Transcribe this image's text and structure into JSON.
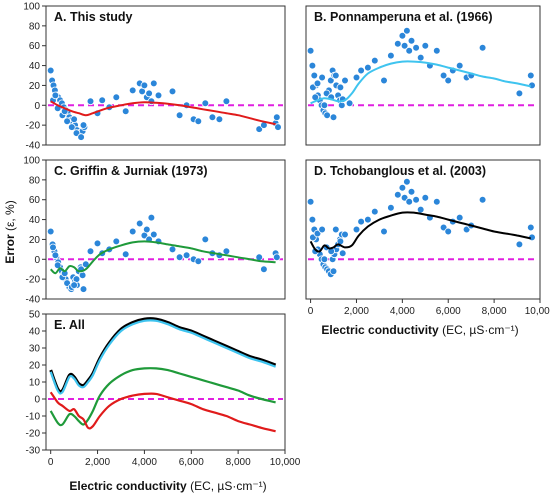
{
  "figure": {
    "y_label_bold": "Error",
    "y_label_rest": " (ε, %)",
    "x_label_bold": "Electric conductivity",
    "x_label_rest": " (EC, µS·cm⁻¹)"
  },
  "colors": {
    "points": "#2b86d9",
    "zero_line": "#e020e0",
    "this_study": "#e01b1b",
    "ponnamperuna": "#3fc4ef",
    "griffin": "#1f9a3a",
    "tchobanglous": "#000000"
  },
  "chart_data": [
    {
      "id": "A",
      "type": "scatter",
      "title": "A. This study",
      "ylim": [
        -40,
        100
      ],
      "yticks": [
        -40,
        -20,
        0,
        20,
        40,
        60,
        80,
        100
      ],
      "xlim": [
        -200,
        10000
      ],
      "xticks": [],
      "grid": false,
      "reference_line_y": 0,
      "fit": {
        "color_key": "this_study",
        "x": [
          0,
          300,
          600,
          900,
          1200,
          1500,
          1800,
          2400,
          3000,
          3500,
          4000,
          4500,
          5000,
          5500,
          6000,
          6500,
          7000,
          7500,
          8000,
          8500,
          9000,
          9600
        ],
        "y": [
          4,
          0,
          -3,
          -6,
          -8,
          -10,
          -8,
          -3,
          0,
          2,
          3,
          2.5,
          1.5,
          0,
          -2,
          -4,
          -6,
          -8,
          -10,
          -13,
          -16,
          -19
        ]
      },
      "points": {
        "x": [
          0,
          60,
          120,
          180,
          250,
          320,
          400,
          480,
          560,
          640,
          720,
          800,
          880,
          960,
          1040,
          1120,
          1200,
          1280,
          1360,
          1440,
          100,
          300,
          500,
          700,
          900,
          1100,
          1300,
          200,
          600,
          1000,
          1400,
          1700,
          2000,
          2200,
          2500,
          2800,
          3200,
          3500,
          3800,
          3900,
          4000,
          4100,
          4200,
          4300,
          4400,
          4600,
          5200,
          5500,
          5800,
          6100,
          6300,
          6600,
          6900,
          7200,
          7500,
          8900,
          9100,
          9600,
          9650,
          9700
        ],
        "y": [
          35,
          25,
          20,
          15,
          10,
          8,
          5,
          2,
          -2,
          -5,
          -8,
          -12,
          -15,
          -18,
          -20,
          -25,
          -28,
          -30,
          -26,
          -22,
          5,
          -3,
          -10,
          -16,
          -22,
          -28,
          -32,
          10,
          -6,
          -14,
          -20,
          4,
          -8,
          5,
          -2,
          8,
          -6,
          15,
          22,
          14,
          20,
          8,
          12,
          4,
          22,
          10,
          14,
          -10,
          0,
          -14,
          -16,
          2,
          -12,
          -14,
          4,
          -24,
          -20,
          -18,
          -12,
          -22
        ]
      }
    },
    {
      "id": "B",
      "type": "scatter",
      "title": "B. Ponnamperuna et al. (1966)",
      "ylim": [
        -40,
        100
      ],
      "yticks": [],
      "xlim": [
        -200,
        10000
      ],
      "xticks": [],
      "grid": false,
      "reference_line_y": 0,
      "fit": {
        "color_key": "ponnamperuna",
        "x": [
          0,
          300,
          600,
          900,
          1200,
          1500,
          1800,
          2100,
          2500,
          3000,
          3500,
          4000,
          4500,
          5000,
          5500,
          6000,
          6500,
          7000,
          7500,
          8000,
          8500,
          9000,
          9600
        ],
        "y": [
          2,
          5,
          7,
          6,
          4,
          5,
          12,
          22,
          32,
          38,
          42,
          44,
          44,
          43,
          41,
          38,
          35,
          32,
          29,
          27,
          24,
          22,
          19
        ]
      },
      "points": {
        "x": [
          0,
          80,
          160,
          240,
          320,
          400,
          480,
          560,
          640,
          720,
          800,
          880,
          960,
          1040,
          1120,
          1200,
          1280,
          1360,
          100,
          300,
          500,
          700,
          900,
          1100,
          1300,
          1500,
          1700,
          200,
          600,
          1000,
          1400,
          2000,
          2200,
          2500,
          2800,
          3200,
          3500,
          3800,
          4000,
          4100,
          4200,
          4300,
          4400,
          4600,
          4800,
          5000,
          5200,
          5500,
          5800,
          6000,
          6200,
          6500,
          6800,
          7000,
          7500,
          9100,
          9600,
          9650
        ],
        "y": [
          55,
          40,
          30,
          20,
          10,
          5,
          0,
          -5,
          -8,
          -10,
          15,
          25,
          35,
          30,
          20,
          10,
          5,
          0,
          18,
          22,
          28,
          12,
          8,
          30,
          18,
          25,
          2,
          8,
          0,
          -12,
          6,
          28,
          35,
          38,
          45,
          25,
          50,
          62,
          70,
          60,
          75,
          55,
          65,
          58,
          48,
          60,
          40,
          55,
          30,
          25,
          35,
          40,
          28,
          30,
          58,
          12,
          30,
          20
        ]
      }
    },
    {
      "id": "C",
      "type": "scatter",
      "title": "C. Griffin & Jurniak (1973)",
      "ylim": [
        -40,
        100
      ],
      "yticks": [
        -40,
        -20,
        0,
        20,
        40,
        60,
        80,
        100
      ],
      "xlim": [
        -200,
        10000
      ],
      "xticks": [],
      "grid": false,
      "reference_line_y": 0,
      "fit": {
        "color_key": "griffin",
        "x": [
          0,
          200,
          400,
          600,
          800,
          1000,
          1200,
          1500,
          1800,
          2100,
          2500,
          3000,
          3500,
          4000,
          4500,
          5000,
          5500,
          6000,
          6500,
          7000,
          7500,
          8000,
          8500,
          9000,
          9600
        ],
        "y": [
          -10,
          -14,
          -9,
          -12,
          -7,
          -8,
          -12,
          -10,
          -2,
          5,
          10,
          14,
          17,
          18,
          17,
          15,
          13,
          11,
          8,
          6,
          4,
          2,
          0,
          -2,
          -3
        ]
      },
      "points": {
        "x": [
          0,
          80,
          160,
          240,
          320,
          400,
          480,
          560,
          640,
          720,
          800,
          880,
          960,
          1040,
          1120,
          1200,
          1280,
          1360,
          100,
          300,
          500,
          700,
          900,
          1100,
          1300,
          1500,
          200,
          600,
          1000,
          1400,
          1700,
          2000,
          2200,
          2500,
          2800,
          3200,
          3500,
          3800,
          4000,
          4100,
          4200,
          4300,
          4400,
          4600,
          5200,
          5500,
          5800,
          6100,
          6300,
          6600,
          6900,
          7200,
          7500,
          8900,
          9100,
          9600,
          9650
        ],
        "y": [
          28,
          15,
          8,
          2,
          -3,
          -8,
          -12,
          -15,
          -20,
          -25,
          -28,
          -30,
          -18,
          -22,
          -26,
          -12,
          -8,
          -16,
          12,
          -6,
          -18,
          -24,
          -28,
          -20,
          -10,
          -5,
          4,
          -14,
          -26,
          -30,
          8,
          16,
          6,
          10,
          18,
          5,
          28,
          36,
          24,
          30,
          20,
          42,
          25,
          18,
          10,
          2,
          4,
          0,
          -2,
          20,
          6,
          4,
          8,
          2,
          -10,
          6,
          2
        ]
      }
    },
    {
      "id": "D",
      "type": "scatter",
      "title": "D. Tchobanglous et al. (2003)",
      "ylim": [
        -40,
        100
      ],
      "yticks": [],
      "xlim": [
        -200,
        10000
      ],
      "xticks": [
        0,
        2000,
        4000,
        6000,
        8000,
        10000
      ],
      "xticklabels": [
        "0",
        "2,000",
        "4,000",
        "6,000",
        "8,000",
        "10,000"
      ],
      "grid": false,
      "reference_line_y": 0,
      "fit": {
        "color_key": "tchobanglous",
        "x": [
          0,
          200,
          400,
          600,
          800,
          1000,
          1200,
          1500,
          1800,
          2100,
          2500,
          3000,
          3500,
          4000,
          4500,
          5000,
          5500,
          6000,
          6500,
          7000,
          7500,
          8000,
          8500,
          9000,
          9600
        ],
        "y": [
          18,
          10,
          8,
          14,
          11,
          12,
          15,
          12,
          14,
          24,
          33,
          40,
          44,
          47,
          47,
          45,
          43,
          40,
          37,
          34,
          31,
          28,
          26,
          24,
          21
        ]
      },
      "points": {
        "x": [
          0,
          80,
          160,
          240,
          320,
          400,
          480,
          560,
          640,
          720,
          800,
          880,
          960,
          1040,
          1120,
          1200,
          1280,
          1360,
          100,
          300,
          500,
          700,
          900,
          1100,
          1300,
          1500,
          200,
          600,
          1000,
          1400,
          2000,
          2200,
          2500,
          2800,
          3200,
          3500,
          3800,
          4000,
          4100,
          4200,
          4300,
          4400,
          4600,
          4800,
          5000,
          5200,
          5500,
          5800,
          6000,
          6200,
          6500,
          6800,
          7000,
          7500,
          9100,
          9600,
          9650
        ],
        "y": [
          58,
          40,
          30,
          20,
          10,
          5,
          0,
          -5,
          -8,
          -10,
          -12,
          -15,
          0,
          5,
          10,
          15,
          20,
          25,
          22,
          26,
          30,
          12,
          8,
          30,
          18,
          25,
          8,
          0,
          -12,
          6,
          30,
          38,
          40,
          48,
          28,
          52,
          65,
          72,
          62,
          78,
          58,
          68,
          60,
          50,
          62,
          42,
          58,
          32,
          28,
          38,
          42,
          30,
          34,
          60,
          15,
          32,
          22
        ]
      }
    },
    {
      "id": "E",
      "type": "line",
      "title": "E. All",
      "ylim": [
        -30,
        50
      ],
      "yticks": [
        -30,
        -20,
        -10,
        0,
        10,
        20,
        30,
        40,
        50
      ],
      "xlim": [
        -200,
        10000
      ],
      "xticks": [
        0,
        2000,
        4000,
        6000,
        8000,
        10000
      ],
      "xticklabels": [
        "0",
        "2,000",
        "4,000",
        "6,000",
        "8,000",
        "10,000"
      ],
      "grid": false,
      "reference_line_y": 0,
      "x": [
        0,
        300,
        500,
        800,
        1000,
        1200,
        1400,
        1600,
        1800,
        2100,
        2500,
        3000,
        3500,
        4000,
        4500,
        5000,
        5500,
        6000,
        6500,
        7000,
        7500,
        8000,
        8500,
        9000,
        9600
      ],
      "series": [
        {
          "color_key": "tchobanglous",
          "values": [
            17,
            6,
            5,
            14,
            13,
            9,
            8,
            11,
            15,
            24,
            33,
            41,
            45,
            47,
            47,
            45,
            42,
            40,
            37,
            34,
            31,
            28,
            25,
            23,
            20
          ]
        },
        {
          "color_key": "ponnamperuna",
          "values": [
            16,
            5,
            4,
            13,
            12,
            8,
            7,
            10,
            14,
            23,
            32,
            40,
            44,
            46,
            46,
            44,
            41,
            39,
            36,
            33,
            30,
            27,
            24,
            22,
            19
          ]
        },
        {
          "color_key": "griffin",
          "values": [
            -7,
            -14,
            -15,
            -9,
            -10,
            -13,
            -15,
            -12,
            -7,
            2,
            9,
            14,
            17,
            18,
            18,
            17,
            15,
            13,
            11,
            9,
            7,
            5,
            2,
            0,
            -2
          ]
        },
        {
          "color_key": "this_study",
          "values": [
            4,
            -2,
            -4,
            -7,
            -6,
            -10,
            -12,
            -17,
            -16,
            -10,
            -4,
            0,
            2,
            3,
            3,
            1,
            -1,
            -3,
            -6,
            -8,
            -10,
            -13,
            -15,
            -17,
            -19
          ]
        }
      ]
    }
  ]
}
